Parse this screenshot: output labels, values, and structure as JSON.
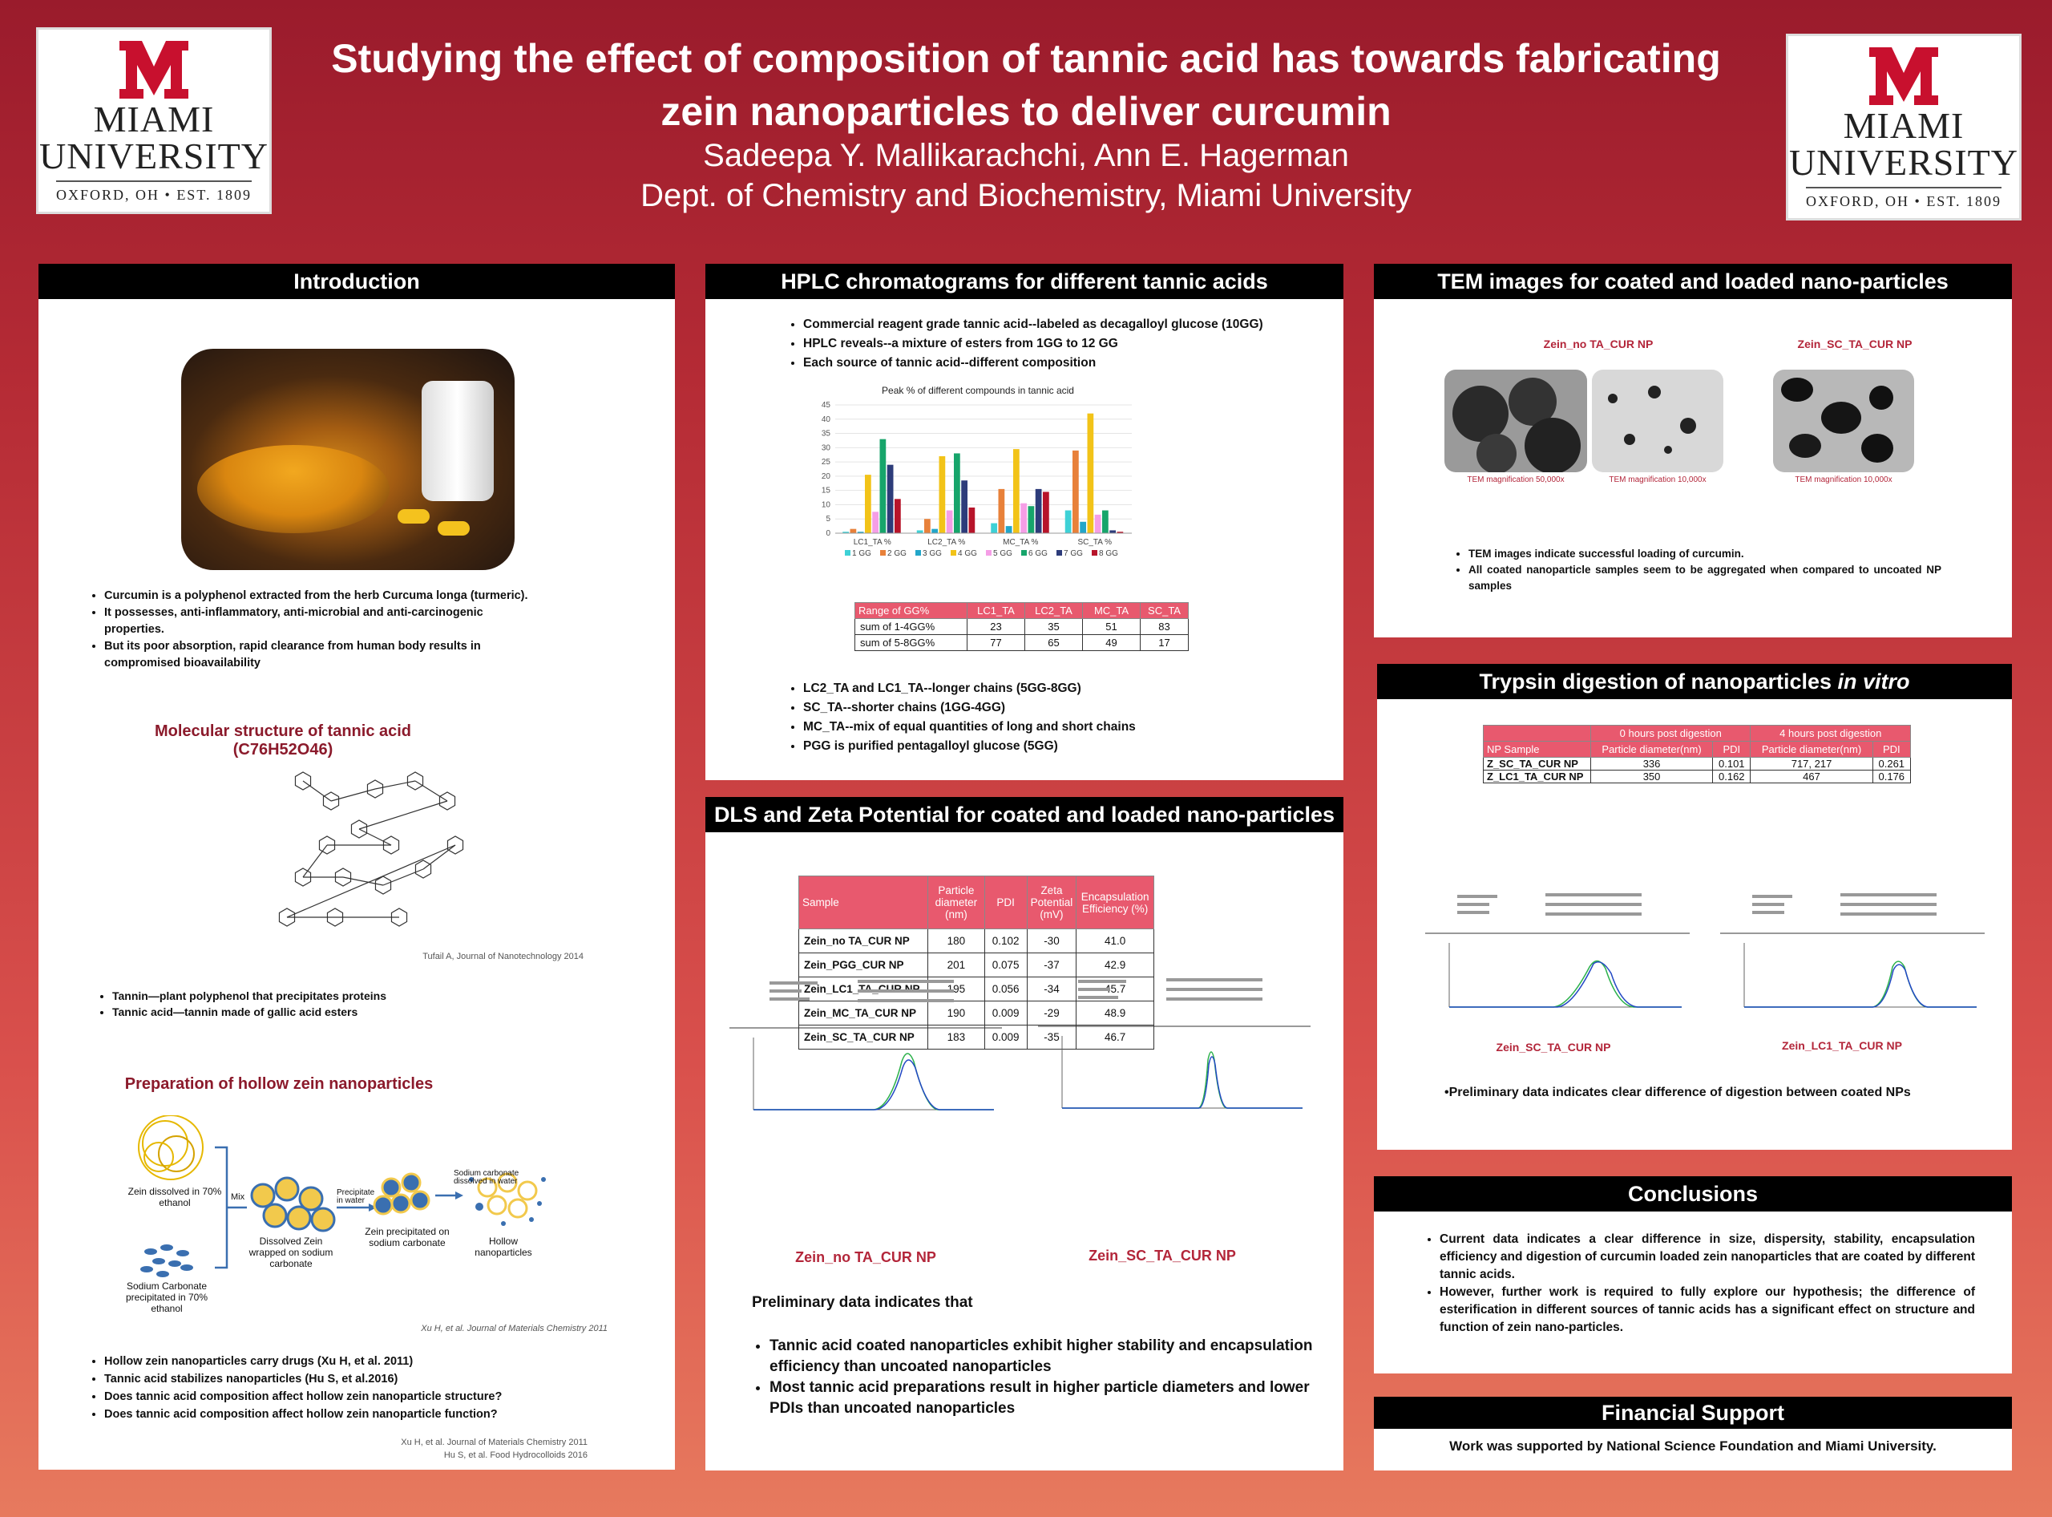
{
  "header": {
    "title": "Studying the effect of composition of tannic acid has towards fabricating zein nanoparticles to deliver curcumin",
    "authors": "Sadeepa Y. Mallikarachchi, Ann E. Hagerman",
    "department": "Dept. of Chemistry and Biochemistry, Miami University"
  },
  "logo": {
    "line1": "MIAMI",
    "line2": "UNIVERSITY",
    "line3": "OXFORD, OH  •  EST. 1809"
  },
  "introduction": {
    "heading": "Introduction",
    "bullets": [
      "Curcumin is a polyphenol extracted from the herb Curcuma longa (turmeric).",
      "It possesses, anti-inflammatory, anti-microbial and anti-carcinogenic properties.",
      "But its poor absorption, rapid clearance from human body results in compromised bioavailability"
    ],
    "structure_title": "Molecular structure of tannic acid (C76H52O46)",
    "structure_cite": "Tufail A, Journal of Nanotechnology 2014",
    "tannin_bullets": [
      "Tannin—plant polyphenol that precipitates proteins",
      "Tannic acid—tannin made of gallic acid esters"
    ],
    "prep_title": "Preparation of hollow zein nanoparticles",
    "prep_labels": {
      "zein": "Zein dissolved in 70% ethanol",
      "sodium": "Sodium Carbonate precipitated in 70% ethanol",
      "mix": "Mix",
      "wrapped": "Dissolved Zein wrapped on sodium carbonate",
      "precipitate": "Precipitate in water",
      "precipitated": "Zein precipitated on sodium carbonate",
      "dissolved": "Sodium carbonate dissolved in water",
      "hollow": "Hollow nanoparticles"
    },
    "prep_cite": "Xu H, et al. Journal of Materials Chemistry 2011",
    "final_bullets": [
      "Hollow zein nanoparticles carry drugs (Xu H, et al. 2011)",
      "Tannic acid stabilizes nanoparticles (Hu S, et al.2016)",
      "Does tannic acid  composition affect hollow zein nanoparticle structure?",
      "Does tannic acid composition affect hollow zein nanoparticle function?"
    ],
    "refs": [
      "Xu H, et al. Journal of Materials Chemistry 2011",
      "Hu S, et al. Food Hydrocolloids 2016"
    ]
  },
  "hplc": {
    "heading": "HPLC chromatograms for different tannic acids",
    "bullets": [
      "Commercial reagent grade tannic acid--labeled as decagalloyl glucose (10GG)",
      "HPLC reveals--a mixture of esters from 1GG to 12 GG",
      "Each source of tannic acid--different composition"
    ],
    "table": {
      "headers": [
        "Range of GG%",
        "LC1_TA",
        "LC2_TA",
        "MC_TA",
        "SC_TA"
      ],
      "rows": [
        [
          "sum of 1-4GG%",
          "23",
          "35",
          "51",
          "83"
        ],
        [
          "sum of 5-8GG%",
          "77",
          "65",
          "49",
          "17"
        ]
      ]
    },
    "bullets2": [
      "LC2_TA and LC1_TA--longer chains (5GG-8GG)",
      "SC_TA--shorter chains (1GG-4GG)",
      "MC_TA--mix of equal quantities of long and short chains",
      "PGG is purified pentagalloyl glucose (5GG)"
    ]
  },
  "chart_data": {
    "type": "bar",
    "title": "Peak % of different compounds in tannic acid",
    "categories": [
      "LC1_TA %",
      "LC2_TA %",
      "MC_TA %",
      "SC_TA %"
    ],
    "ylim": [
      0,
      45
    ],
    "yticks": [
      "0",
      "5",
      "10",
      "15",
      "20",
      "25",
      "30",
      "35",
      "40",
      "45"
    ],
    "legend_position": "bottom",
    "series": [
      {
        "name": "1 GG",
        "color": "#3ed1d6",
        "values": [
          0.5,
          1,
          3.5,
          8
        ]
      },
      {
        "name": "2 GG",
        "color": "#e8813a",
        "values": [
          1.5,
          5,
          15.5,
          29
        ]
      },
      {
        "name": "3 GG",
        "color": "#22a6c9",
        "values": [
          0.5,
          1.5,
          2.5,
          4
        ]
      },
      {
        "name": "4 GG",
        "color": "#f2c318",
        "values": [
          20.5,
          27,
          29.5,
          42
        ]
      },
      {
        "name": "5 GG",
        "color": "#f59ee6",
        "values": [
          7.5,
          8,
          10.5,
          6.5
        ]
      },
      {
        "name": "6 GG",
        "color": "#17a56b",
        "values": [
          33,
          28,
          9.5,
          8
        ]
      },
      {
        "name": "7 GG",
        "color": "#2d3c7a",
        "values": [
          24,
          18.5,
          15.5,
          1
        ]
      },
      {
        "name": "8 GG",
        "color": "#b7142a",
        "values": [
          12,
          9,
          14.5,
          0.5
        ]
      }
    ]
  },
  "dls": {
    "heading": "DLS and Zeta Potential for coated and loaded nano-particles",
    "headers": [
      "Sample",
      "Particle diameter (nm)",
      "PDI",
      "Zeta Potential (mV)",
      "Encapsulation Efficiency (%)"
    ],
    "rows": [
      [
        "Zein_no TA_CUR NP",
        "180",
        "0.102",
        "-30",
        "41.0"
      ],
      [
        "Zein_PGG_CUR NP",
        "201",
        "0.075",
        "-37",
        "42.9"
      ],
      [
        "Zein_LC1_TA_CUR NP",
        "195",
        "0.056",
        "-34",
        "45.7"
      ],
      [
        "Zein_MC_TA_CUR NP",
        "190",
        "0.009",
        "-29",
        "48.9"
      ],
      [
        "Zein_SC_TA_CUR NP",
        "183",
        "0.009",
        "-35",
        "46.7"
      ]
    ],
    "plot_labels": [
      "Zein_no TA_CUR NP",
      "Zein_SC_TA_CUR NP"
    ],
    "prelim": "Preliminary data indicates that",
    "bullets": [
      "Tannic acid coated nanoparticles exhibit higher stability  and encapsulation efficiency than uncoated nanoparticles",
      "Most tannic acid preparations result in higher particle diameters and lower PDIs than uncoated nanoparticles"
    ]
  },
  "tem": {
    "heading": "TEM images for coated and loaded nano-particles",
    "label_left": "Zein_no TA_CUR NP",
    "label_right": "Zein_SC_TA_CUR NP",
    "captions": [
      "TEM magnification 50,000x",
      "TEM magnification 10,000x",
      "TEM magnification 10,000x"
    ],
    "bullets": [
      "TEM images indicate successful loading of curcumin.",
      "All coated nanoparticle samples seem to be aggregated when compared to uncoated NP samples"
    ]
  },
  "trypsin": {
    "heading_main": "Trypsin digestion of nanoparticles",
    "heading_em": "in vitro",
    "group_0h": "0 hours post digestion",
    "group_4h": "4 hours post digestion",
    "col_sample": "NP Sample",
    "col_diam": "Particle diameter(nm)",
    "col_pdi": "PDI",
    "rows": [
      [
        "Z_SC_TA_CUR NP",
        "336",
        "0.101",
        "717, 217",
        "0.261"
      ],
      [
        "Z_LC1_TA_CUR NP",
        "350",
        "0.162",
        "467",
        "0.176"
      ]
    ],
    "plot_labels": [
      "Zein_SC_TA_CUR NP",
      "Zein_LC1_TA_CUR NP"
    ],
    "note": "Preliminary data indicates clear difference of digestion between coated NPs"
  },
  "conclusions": {
    "heading": "Conclusions",
    "bullets": [
      "Current data indicates a clear difference in size, dispersity, stability, encapsulation efficiency and digestion of curcumin loaded zein nanoparticles that are coated by different tannic acids.",
      "However, further work is required to fully explore our hypothesis; the difference of esterification in different sources of tannic acids has a significant effect on structure and function of  zein nano-particles."
    ]
  },
  "financial": {
    "heading": "Financial Support",
    "text": "Work was supported by National Science Foundation and Miami University."
  }
}
